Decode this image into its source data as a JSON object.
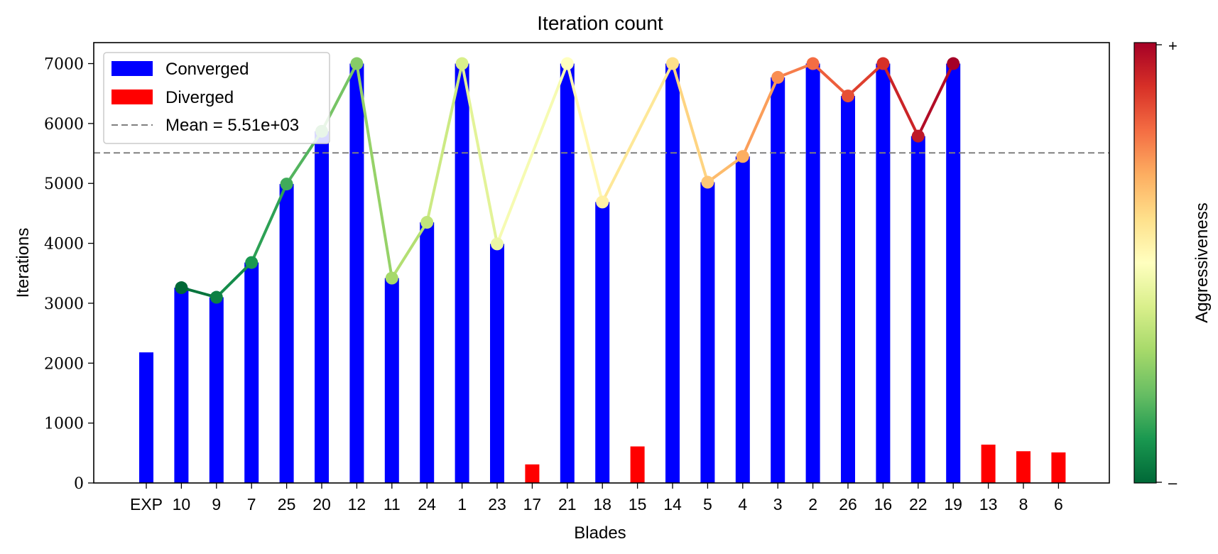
{
  "chart_data": {
    "type": "bar",
    "title": "Iteration count",
    "xlabel": "Blades",
    "ylabel": "Iterations",
    "ylim": [
      0,
      7350
    ],
    "yticks": [
      0,
      1000,
      2000,
      3000,
      4000,
      5000,
      6000,
      7000
    ],
    "categories": [
      "EXP",
      "10",
      "9",
      "7",
      "25",
      "20",
      "12",
      "11",
      "24",
      "1",
      "23",
      "17",
      "21",
      "18",
      "15",
      "14",
      "5",
      "4",
      "3",
      "2",
      "26",
      "16",
      "22",
      "19",
      "13",
      "8",
      "6"
    ],
    "values": [
      2180,
      3260,
      3100,
      3680,
      4990,
      5870,
      7000,
      3420,
      4350,
      7000,
      3990,
      310,
      7000,
      4690,
      610,
      7000,
      5020,
      5450,
      6770,
      7000,
      6460,
      7000,
      5790,
      7000,
      640,
      530,
      510
    ],
    "status": [
      "Converged",
      "Converged",
      "Converged",
      "Converged",
      "Converged",
      "Converged",
      "Converged",
      "Converged",
      "Converged",
      "Converged",
      "Converged",
      "Diverged",
      "Converged",
      "Converged",
      "Diverged",
      "Converged",
      "Converged",
      "Converged",
      "Converged",
      "Converged",
      "Converged",
      "Converged",
      "Converged",
      "Converged",
      "Diverged",
      "Diverged",
      "Diverged"
    ],
    "line": {
      "categories": [
        "10",
        "9",
        "7",
        "25",
        "20",
        "12",
        "11",
        "24",
        "1",
        "23",
        "21",
        "18",
        "14",
        "5",
        "4",
        "3",
        "2",
        "26",
        "16",
        "22",
        "19"
      ],
      "values": [
        3260,
        3100,
        3680,
        4990,
        5870,
        7000,
        3420,
        4350,
        7000,
        3990,
        7000,
        4690,
        7000,
        5020,
        5450,
        6770,
        7000,
        6460,
        7000,
        5790,
        7000
      ],
      "aggressiveness": [
        0.0,
        0.05,
        0.1,
        0.15,
        0.2,
        0.25,
        0.3,
        0.35,
        0.4,
        0.45,
        0.5,
        0.55,
        0.6,
        0.65,
        0.7,
        0.75,
        0.8,
        0.85,
        0.9,
        0.95,
        1.0
      ]
    },
    "mean": 5510,
    "legend": {
      "position": "top-left",
      "converged_label": "Converged",
      "diverged_label": "Diverged",
      "mean_label": "Mean = 5.51e+03"
    },
    "colorbar": {
      "label": "Aggressiveness",
      "top_label": "+",
      "bottom_label": "–",
      "colormap": "RdYlGn_r"
    },
    "colors": {
      "converged": "#0000ff",
      "diverged": "#ff0000",
      "mean_line": "#808080"
    },
    "grid": false
  }
}
